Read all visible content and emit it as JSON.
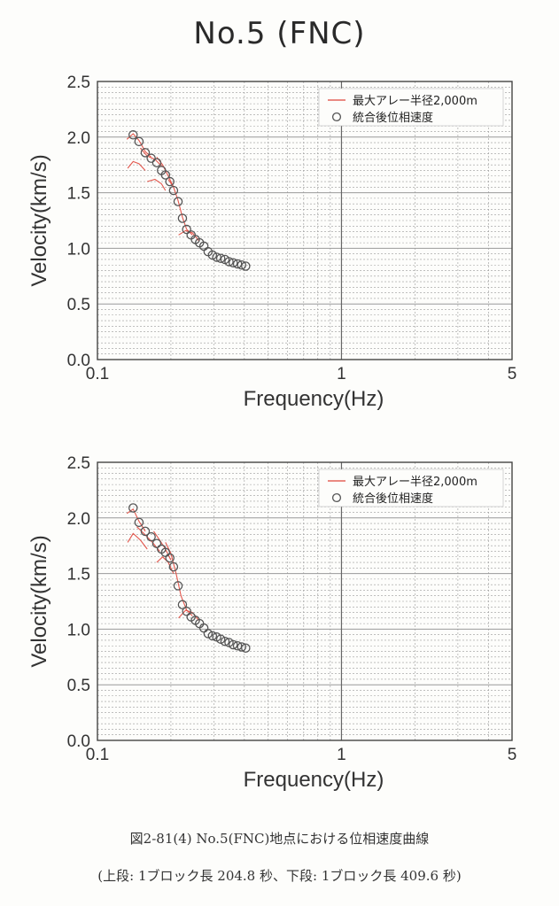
{
  "title": "No.5 (FNC)",
  "caption": "図2-81(4) No.5(FNC)地点における位相速度曲線",
  "subcaption": "(上段: 1ブロック長 204.8 秒、下段: 1ブロック長 409.6 秒)",
  "colors": {
    "red": "#e0453a",
    "marker": "#555555",
    "grid": "#9a9a9a",
    "frame": "#444444"
  },
  "chart_data": [
    {
      "type": "scatter",
      "x_scale": "log",
      "xlabel": "Frequency(Hz)",
      "ylabel": "Velocity(km/s)",
      "xlim": [
        0.1,
        5
      ],
      "ylim": [
        0.0,
        2.5
      ],
      "x_ticks": [
        {
          "v": 0.1,
          "label": "0.1"
        },
        {
          "v": 1,
          "label": "1"
        },
        {
          "v": 5,
          "label": "5"
        }
      ],
      "y_ticks": [
        {
          "v": 0.0,
          "label": "0.0"
        },
        {
          "v": 0.5,
          "label": "0.5"
        },
        {
          "v": 1.0,
          "label": "1.0"
        },
        {
          "v": 1.5,
          "label": "1.5"
        },
        {
          "v": 2.0,
          "label": "2.0"
        },
        {
          "v": 2.5,
          "label": "2.5"
        }
      ],
      "grid": true,
      "legend_position": "top-right",
      "legend": [
        "最大アレー半径2,000m",
        "統合後位相速度"
      ],
      "series": [
        {
          "name": "統合後位相速度",
          "points": [
            [
              0.14,
              2.02
            ],
            [
              0.148,
              1.96
            ],
            [
              0.157,
              1.86
            ],
            [
              0.166,
              1.81
            ],
            [
              0.175,
              1.77
            ],
            [
              0.183,
              1.7
            ],
            [
              0.19,
              1.66
            ],
            [
              0.198,
              1.6
            ],
            [
              0.205,
              1.52
            ],
            [
              0.214,
              1.42
            ],
            [
              0.223,
              1.27
            ],
            [
              0.232,
              1.17
            ],
            [
              0.242,
              1.12
            ],
            [
              0.252,
              1.08
            ],
            [
              0.262,
              1.05
            ],
            [
              0.273,
              1.02
            ],
            [
              0.284,
              0.97
            ],
            [
              0.296,
              0.94
            ],
            [
              0.308,
              0.92
            ],
            [
              0.32,
              0.91
            ],
            [
              0.333,
              0.9
            ],
            [
              0.346,
              0.88
            ],
            [
              0.36,
              0.87
            ],
            [
              0.375,
              0.86
            ],
            [
              0.39,
              0.85
            ],
            [
              0.405,
              0.84
            ]
          ]
        },
        {
          "name": "最大アレー半径2,000m",
          "lines": [
            [
              [
                0.132,
                1.98
              ],
              [
                0.14,
                2.03
              ],
              [
                0.148,
                1.97
              ],
              [
                0.157,
                1.87
              ],
              [
                0.166,
                1.82
              ]
            ],
            [
              [
                0.133,
                1.72
              ],
              [
                0.14,
                1.78
              ],
              [
                0.148,
                1.76
              ],
              [
                0.157,
                1.7
              ]
            ],
            [
              [
                0.15,
                1.9
              ],
              [
                0.16,
                1.83
              ],
              [
                0.172,
                1.8
              ],
              [
                0.185,
                1.73
              ]
            ],
            [
              [
                0.175,
                1.82
              ],
              [
                0.185,
                1.75
              ],
              [
                0.195,
                1.65
              ],
              [
                0.205,
                1.55
              ]
            ],
            [
              [
                0.16,
                1.6
              ],
              [
                0.172,
                1.62
              ],
              [
                0.183,
                1.58
              ],
              [
                0.19,
                1.52
              ]
            ],
            [
              [
                0.195,
                1.62
              ],
              [
                0.205,
                1.55
              ],
              [
                0.214,
                1.43
              ],
              [
                0.223,
                1.28
              ],
              [
                0.232,
                1.17
              ],
              [
                0.245,
                1.12
              ]
            ],
            [
              [
                0.215,
                1.12
              ],
              [
                0.23,
                1.16
              ],
              [
                0.245,
                1.14
              ],
              [
                0.26,
                1.07
              ]
            ]
          ]
        }
      ]
    },
    {
      "type": "scatter",
      "x_scale": "log",
      "xlabel": "Frequency(Hz)",
      "ylabel": "Velocity(km/s)",
      "xlim": [
        0.1,
        5
      ],
      "ylim": [
        0.0,
        2.5
      ],
      "x_ticks": [
        {
          "v": 0.1,
          "label": "0.1"
        },
        {
          "v": 1,
          "label": "1"
        },
        {
          "v": 5,
          "label": "5"
        }
      ],
      "y_ticks": [
        {
          "v": 0.0,
          "label": "0.0"
        },
        {
          "v": 0.5,
          "label": "0.5"
        },
        {
          "v": 1.0,
          "label": "1.0"
        },
        {
          "v": 1.5,
          "label": "1.5"
        },
        {
          "v": 2.0,
          "label": "2.0"
        },
        {
          "v": 2.5,
          "label": "2.5"
        }
      ],
      "grid": true,
      "legend_position": "top-right",
      "legend": [
        "最大アレー半径2,000m",
        "統合後位相速度"
      ],
      "series": [
        {
          "name": "統合後位相速度",
          "points": [
            [
              0.14,
              2.09
            ],
            [
              0.148,
              1.96
            ],
            [
              0.157,
              1.88
            ],
            [
              0.166,
              1.83
            ],
            [
              0.175,
              1.77
            ],
            [
              0.183,
              1.72
            ],
            [
              0.19,
              1.69
            ],
            [
              0.198,
              1.64
            ],
            [
              0.205,
              1.56
            ],
            [
              0.214,
              1.39
            ],
            [
              0.223,
              1.22
            ],
            [
              0.232,
              1.16
            ],
            [
              0.242,
              1.11
            ],
            [
              0.252,
              1.08
            ],
            [
              0.262,
              1.05
            ],
            [
              0.273,
              1.01
            ],
            [
              0.284,
              0.96
            ],
            [
              0.296,
              0.94
            ],
            [
              0.308,
              0.93
            ],
            [
              0.32,
              0.91
            ],
            [
              0.333,
              0.89
            ],
            [
              0.346,
              0.88
            ],
            [
              0.36,
              0.86
            ],
            [
              0.375,
              0.85
            ],
            [
              0.39,
              0.84
            ],
            [
              0.405,
              0.83
            ]
          ]
        },
        {
          "name": "最大アレー半径2,000m",
          "lines": [
            [
              [
                0.132,
                2.04
              ],
              [
                0.14,
                2.08
              ],
              [
                0.148,
                1.97
              ],
              [
                0.157,
                1.88
              ]
            ],
            [
              [
                0.133,
                1.78
              ],
              [
                0.14,
                1.86
              ],
              [
                0.15,
                1.8
              ],
              [
                0.16,
                1.72
              ]
            ],
            [
              [
                0.145,
                1.92
              ],
              [
                0.155,
                1.86
              ],
              [
                0.168,
                1.78
              ],
              [
                0.18,
                1.7
              ]
            ],
            [
              [
                0.17,
                1.88
              ],
              [
                0.18,
                1.8
              ],
              [
                0.19,
                1.72
              ],
              [
                0.2,
                1.62
              ]
            ],
            [
              [
                0.175,
                1.6
              ],
              [
                0.185,
                1.65
              ],
              [
                0.195,
                1.6
              ],
              [
                0.205,
                1.5
              ]
            ],
            [
              [
                0.19,
                1.78
              ],
              [
                0.2,
                1.68
              ],
              [
                0.21,
                1.5
              ],
              [
                0.22,
                1.3
              ],
              [
                0.232,
                1.17
              ],
              [
                0.245,
                1.12
              ]
            ],
            [
              [
                0.215,
                1.1
              ],
              [
                0.23,
                1.17
              ],
              [
                0.245,
                1.15
              ],
              [
                0.26,
                1.08
              ]
            ]
          ]
        }
      ]
    }
  ]
}
